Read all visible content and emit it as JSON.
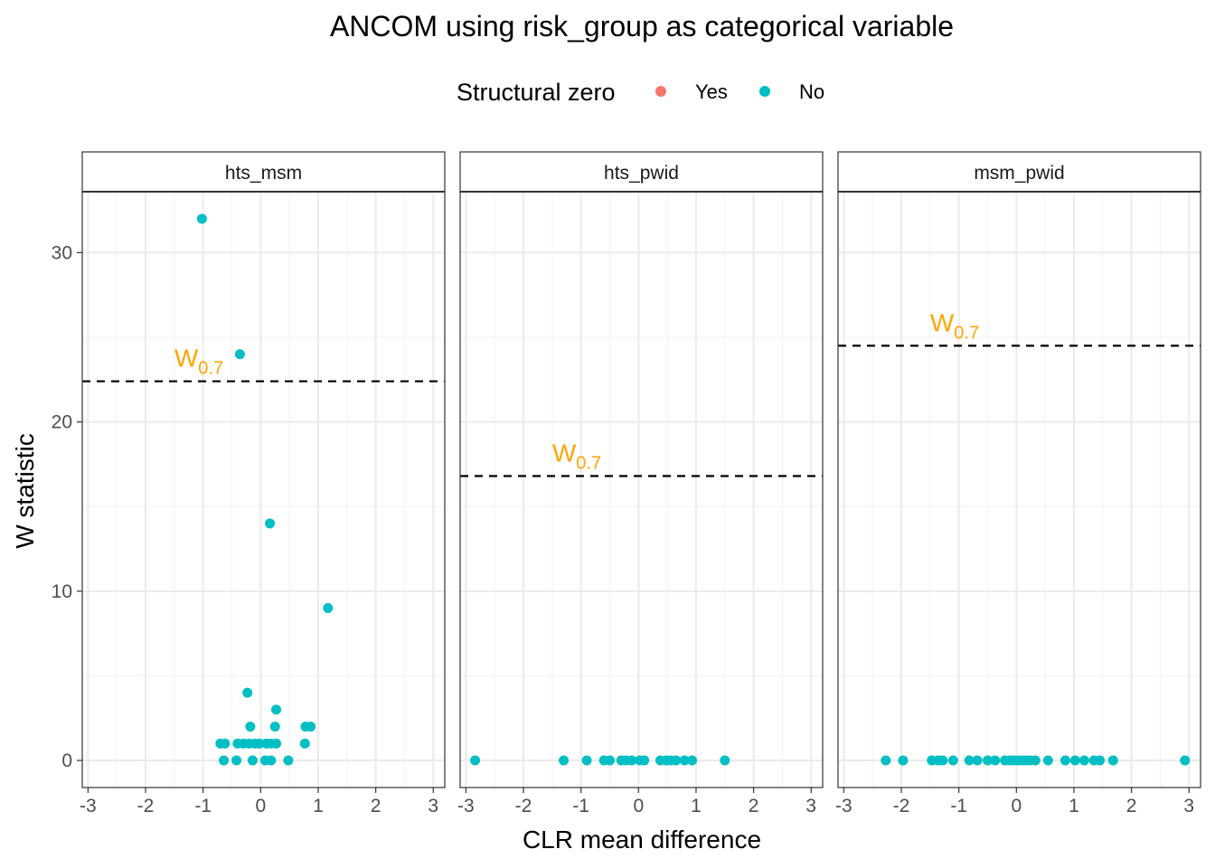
{
  "chart_data": {
    "type": "scatter",
    "title": "ANCOM using risk_group as categorical variable",
    "xlabel": "CLR mean difference",
    "ylabel": "W statistic",
    "xlim": [
      -3.1,
      3.2
    ],
    "ylim": [
      -1.6,
      33.6
    ],
    "x_ticks": [
      "-3",
      "-2",
      "-1",
      "0",
      "1",
      "2",
      "3"
    ],
    "y_ticks": [
      "0",
      "10",
      "20",
      "30"
    ],
    "grid": true,
    "legend": {
      "title": "Structural zero",
      "position": "top",
      "entries": [
        {
          "label": "Yes",
          "color": "#F8766D"
        },
        {
          "label": "No",
          "color": "#00BFC4"
        }
      ]
    },
    "threshold_label": "W",
    "threshold_subscript": "0.7",
    "threshold_color": "#FFA500",
    "point_color": "#00BFC4",
    "panels": [
      {
        "name": "hts_msm",
        "threshold": 22.4,
        "threshold_label_x": -1.5,
        "points": [
          [
            -1.02,
            32
          ],
          [
            -0.36,
            24
          ],
          [
            0.16,
            14
          ],
          [
            1.17,
            9
          ],
          [
            -0.23,
            4
          ],
          [
            0.27,
            3
          ],
          [
            -0.18,
            2
          ],
          [
            0.25,
            2
          ],
          [
            0.78,
            2
          ],
          [
            0.87,
            2
          ],
          [
            -0.7,
            1
          ],
          [
            -0.62,
            1
          ],
          [
            -0.4,
            1
          ],
          [
            -0.3,
            1
          ],
          [
            -0.2,
            1
          ],
          [
            -0.1,
            1
          ],
          [
            -0.02,
            1
          ],
          [
            0.1,
            1
          ],
          [
            0.18,
            1
          ],
          [
            0.27,
            1
          ],
          [
            0.77,
            1
          ],
          [
            -0.64,
            0
          ],
          [
            -0.42,
            0
          ],
          [
            -0.14,
            0
          ],
          [
            0.08,
            0
          ],
          [
            0.18,
            0
          ],
          [
            0.48,
            0
          ]
        ]
      },
      {
        "name": "hts_pwid",
        "threshold": 16.8,
        "threshold_label_x": -1.5,
        "points": [
          [
            -2.84,
            0
          ],
          [
            -1.3,
            0
          ],
          [
            -0.9,
            0
          ],
          [
            -0.6,
            0
          ],
          [
            -0.5,
            0
          ],
          [
            -0.3,
            0
          ],
          [
            -0.22,
            0
          ],
          [
            -0.12,
            0
          ],
          [
            0.02,
            0
          ],
          [
            0.1,
            0
          ],
          [
            0.38,
            0
          ],
          [
            0.48,
            0
          ],
          [
            0.56,
            0
          ],
          [
            0.65,
            0
          ],
          [
            0.8,
            0
          ],
          [
            0.93,
            0
          ],
          [
            1.5,
            0
          ]
        ]
      },
      {
        "name": "msm_pwid",
        "threshold": 24.5,
        "threshold_label_x": -1.5,
        "points": [
          [
            -2.27,
            0
          ],
          [
            -1.97,
            0
          ],
          [
            -1.47,
            0
          ],
          [
            -1.36,
            0
          ],
          [
            -1.28,
            0
          ],
          [
            -1.1,
            0
          ],
          [
            -0.82,
            0
          ],
          [
            -0.68,
            0
          ],
          [
            -0.5,
            0
          ],
          [
            -0.37,
            0
          ],
          [
            -0.2,
            0
          ],
          [
            -0.12,
            0
          ],
          [
            -0.05,
            0
          ],
          [
            0.03,
            0
          ],
          [
            0.1,
            0
          ],
          [
            0.17,
            0
          ],
          [
            0.25,
            0
          ],
          [
            0.33,
            0
          ],
          [
            0.55,
            0
          ],
          [
            0.85,
            0
          ],
          [
            1.02,
            0
          ],
          [
            1.18,
            0
          ],
          [
            1.35,
            0
          ],
          [
            1.45,
            0
          ],
          [
            1.68,
            0
          ],
          [
            2.93,
            0
          ]
        ]
      }
    ]
  }
}
